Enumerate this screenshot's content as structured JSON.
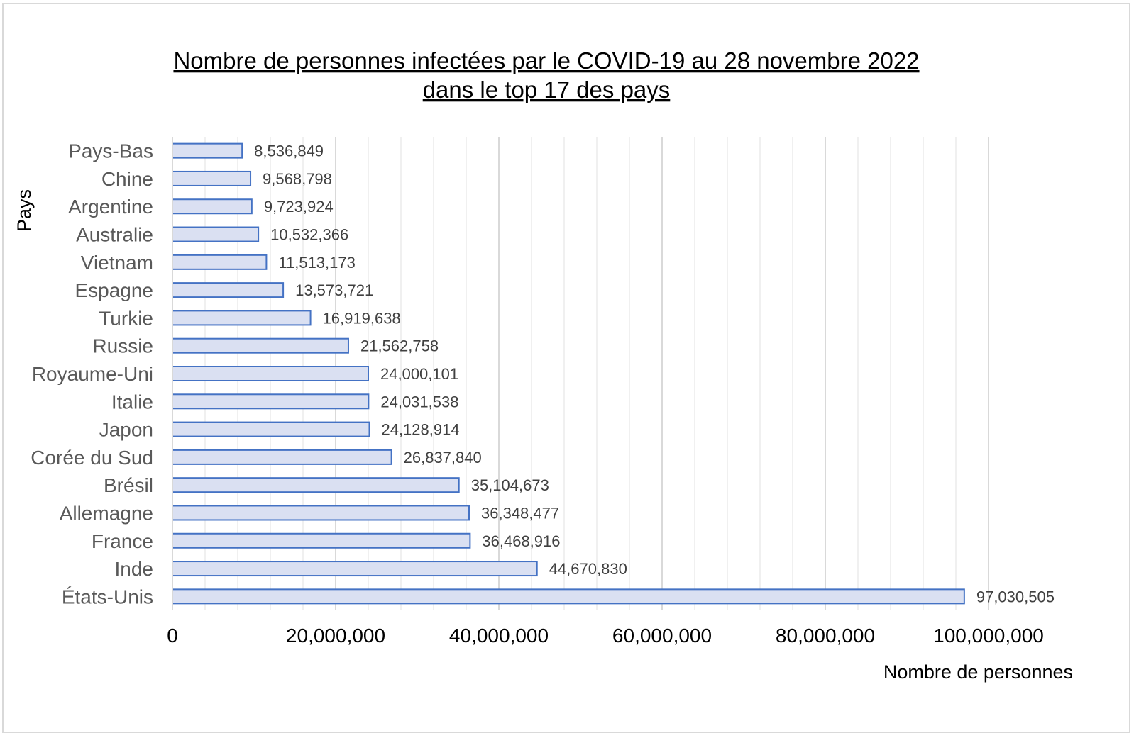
{
  "chart_data": {
    "type": "bar",
    "orientation": "horizontal",
    "title": [
      "Nombre de personnes infectées par le COVID-19 au 28 novembre 2022",
      "dans le top 17 des pays"
    ],
    "xlabel": "Nombre de personnes",
    "ylabel": "Pays",
    "xlim": [
      0,
      100000000
    ],
    "x_ticks": [
      0,
      20000000,
      40000000,
      60000000,
      80000000,
      100000000
    ],
    "x_tick_labels": [
      "0",
      "20,000,000",
      "40,000,000",
      "60,000,000",
      "80,000,000",
      "100,000,000"
    ],
    "minor_gridline_step": 4000000,
    "grid": true,
    "legend": "none",
    "categories": [
      "Pays-Bas",
      "Chine",
      "Argentine",
      "Australie",
      "Vietnam",
      "Espagne",
      "Turkie",
      "Russie",
      "Royaume-Uni",
      "Italie",
      "Japon",
      "Corée du Sud",
      "Brésil",
      "Allemagne",
      "France",
      "Inde",
      "États-Unis"
    ],
    "values": [
      8536849,
      9568798,
      9723924,
      10532366,
      11513173,
      13573721,
      16919638,
      21562758,
      24000101,
      24031538,
      24128914,
      26837840,
      35104673,
      36348477,
      36468916,
      44670830,
      97030505
    ],
    "value_labels": [
      "8,536,849",
      "9,568,798",
      "9,723,924",
      "10,532,366",
      "11,513,173",
      "13,573,721",
      "16,919,638",
      "21,562,758",
      "24,000,101",
      "24,031,538",
      "24,128,914",
      "26,837,840",
      "35,104,673",
      "36,348,477",
      "36,468,916",
      "44,670,830",
      "97,030,505"
    ],
    "colors": {
      "bar_fill": "#dae0f2",
      "bar_stroke": "#4472c4",
      "major_grid": "#d9d9d9",
      "minor_grid": "#f0f0f0"
    }
  }
}
